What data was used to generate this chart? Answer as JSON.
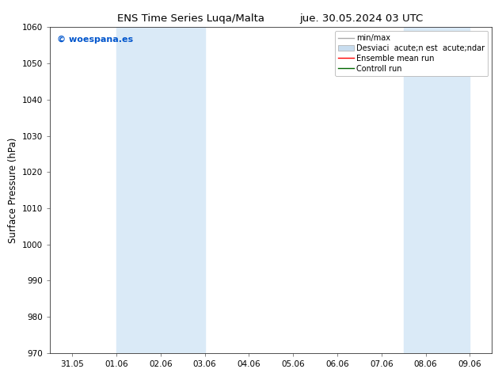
{
  "title_left": "ENS Time Series Luqa/Malta",
  "title_right": "jue. 30.05.2024 03 UTC",
  "ylabel": "Surface Pressure (hPa)",
  "ylim": [
    970,
    1060
  ],
  "yticks": [
    970,
    980,
    990,
    1000,
    1010,
    1020,
    1030,
    1040,
    1050,
    1060
  ],
  "xtick_labels": [
    "31.05",
    "01.06",
    "02.06",
    "03.06",
    "04.06",
    "05.06",
    "06.06",
    "07.06",
    "08.06",
    "09.06"
  ],
  "xtick_positions": [
    0,
    1,
    2,
    3,
    4,
    5,
    6,
    7,
    8,
    9
  ],
  "shaded_bands": [
    {
      "x_start": 1.0,
      "x_end": 3.0
    },
    {
      "x_start": 7.5,
      "x_end": 9.0
    }
  ],
  "band_color": "#daeaf7",
  "watermark_text": "© woespana.es",
  "watermark_color": "#0055cc",
  "bg_color": "#ffffff",
  "legend_label_minmax": "min/max",
  "legend_label_desv": "Desviaci  acute;n est  acute;ndar",
  "legend_label_ensemble": "Ensemble mean run",
  "legend_label_control": "Controll run",
  "color_minmax": "#aaaaaa",
  "color_desv": "#c8ddef",
  "color_ensemble": "#ff0000",
  "color_control": "#006600",
  "title_fontsize": 9.5,
  "tick_fontsize": 7.5,
  "ylabel_fontsize": 8.5,
  "legend_fontsize": 7,
  "watermark_fontsize": 8,
  "fig_width": 6.34,
  "fig_height": 4.9,
  "dpi": 100
}
